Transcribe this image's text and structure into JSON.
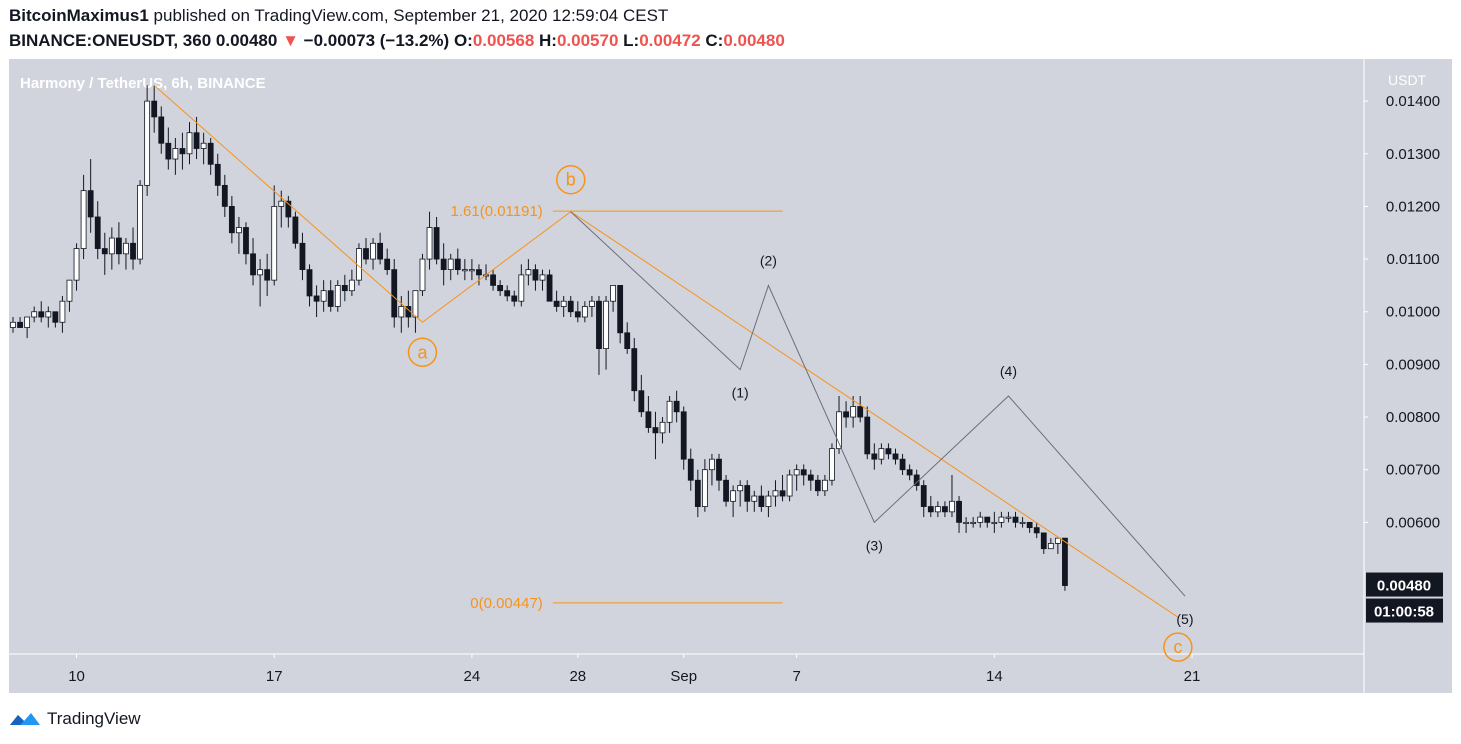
{
  "header": {
    "author": "BitcoinMaximus1",
    "published_text": "published on TradingView.com, September 21, 2020 12:59:04 CEST",
    "symbol": "BINANCE:ONEUSDT, 360",
    "last_price": "0.00480",
    "change_arrow": "▼",
    "change": "−0.00073 (−13.2%)",
    "open_label": "O:",
    "open": "0.00568",
    "high_label": "H:",
    "high": "0.00570",
    "low_label": "L:",
    "low": "0.00472",
    "close_label": "C:",
    "close": "0.00480"
  },
  "footer": {
    "brand": "TradingView"
  },
  "colors": {
    "chart_bg": "#d1d4dc",
    "axis_bg": "#d1d4dc",
    "wave_orange": "#f7931a",
    "wave_gray": "#6b6f7b",
    "candle_up_fill": "#ffffff",
    "candle_down_fill": "#131722",
    "price_badge": "#131722"
  },
  "chart_data": {
    "type": "candlestick",
    "title": "Harmony / TetherUS, 6h, BINANCE",
    "y_axis_unit": "USDT",
    "y_axis_side": "right",
    "ylim": [
      0.0035,
      0.0148
    ],
    "y_ticks": [
      "0.01400",
      "0.01300",
      "0.01200",
      "0.01100",
      "0.01000",
      "0.00900",
      "0.00800",
      "0.00700",
      "0.00600"
    ],
    "x_ticks": [
      "10",
      "17",
      "24",
      "28",
      "Sep",
      "7",
      "14",
      "21"
    ],
    "x_ticks_bar": [
      9,
      37,
      65,
      80,
      95,
      111,
      139,
      167
    ],
    "current_price_label": "0.00480",
    "countdown_label": "01:00:58",
    "candles": [
      {
        "o": 0.0097,
        "h": 0.0099,
        "l": 0.0096,
        "c": 0.0098
      },
      {
        "o": 0.0098,
        "h": 0.0099,
        "l": 0.0097,
        "c": 0.0097
      },
      {
        "o": 0.0097,
        "h": 0.0099,
        "l": 0.0095,
        "c": 0.0099
      },
      {
        "o": 0.0099,
        "h": 0.0101,
        "l": 0.0098,
        "c": 0.01
      },
      {
        "o": 0.01,
        "h": 0.0102,
        "l": 0.0098,
        "c": 0.0099
      },
      {
        "o": 0.0099,
        "h": 0.0101,
        "l": 0.0097,
        "c": 0.01
      },
      {
        "o": 0.01,
        "h": 0.01,
        "l": 0.0097,
        "c": 0.0098
      },
      {
        "o": 0.0098,
        "h": 0.0103,
        "l": 0.0096,
        "c": 0.0102
      },
      {
        "o": 0.0102,
        "h": 0.0106,
        "l": 0.01,
        "c": 0.0106
      },
      {
        "o": 0.0106,
        "h": 0.0113,
        "l": 0.0104,
        "c": 0.0112
      },
      {
        "o": 0.0112,
        "h": 0.0126,
        "l": 0.011,
        "c": 0.0123
      },
      {
        "o": 0.0123,
        "h": 0.0129,
        "l": 0.0115,
        "c": 0.0118
      },
      {
        "o": 0.0118,
        "h": 0.0121,
        "l": 0.011,
        "c": 0.0112
      },
      {
        "o": 0.0112,
        "h": 0.0115,
        "l": 0.0107,
        "c": 0.0111
      },
      {
        "o": 0.0111,
        "h": 0.0116,
        "l": 0.0108,
        "c": 0.0114
      },
      {
        "o": 0.0114,
        "h": 0.0117,
        "l": 0.0109,
        "c": 0.0111
      },
      {
        "o": 0.0111,
        "h": 0.0114,
        "l": 0.0108,
        "c": 0.0113
      },
      {
        "o": 0.0113,
        "h": 0.0116,
        "l": 0.0108,
        "c": 0.011
      },
      {
        "o": 0.011,
        "h": 0.0125,
        "l": 0.0109,
        "c": 0.0124
      },
      {
        "o": 0.0124,
        "h": 0.0143,
        "l": 0.0122,
        "c": 0.014
      },
      {
        "o": 0.014,
        "h": 0.0143,
        "l": 0.0134,
        "c": 0.0137
      },
      {
        "o": 0.0137,
        "h": 0.0139,
        "l": 0.013,
        "c": 0.0132
      },
      {
        "o": 0.0132,
        "h": 0.0135,
        "l": 0.0127,
        "c": 0.0129
      },
      {
        "o": 0.0129,
        "h": 0.0133,
        "l": 0.0126,
        "c": 0.0131
      },
      {
        "o": 0.0131,
        "h": 0.0134,
        "l": 0.0127,
        "c": 0.013
      },
      {
        "o": 0.013,
        "h": 0.0136,
        "l": 0.0128,
        "c": 0.0134
      },
      {
        "o": 0.0134,
        "h": 0.0137,
        "l": 0.0129,
        "c": 0.0131
      },
      {
        "o": 0.0131,
        "h": 0.0134,
        "l": 0.0128,
        "c": 0.0132
      },
      {
        "o": 0.0132,
        "h": 0.0133,
        "l": 0.0126,
        "c": 0.0128
      },
      {
        "o": 0.0128,
        "h": 0.013,
        "l": 0.0122,
        "c": 0.0124
      },
      {
        "o": 0.0124,
        "h": 0.0126,
        "l": 0.0118,
        "c": 0.012
      },
      {
        "o": 0.012,
        "h": 0.0122,
        "l": 0.0113,
        "c": 0.0115
      },
      {
        "o": 0.0115,
        "h": 0.0118,
        "l": 0.0111,
        "c": 0.0116
      },
      {
        "o": 0.0116,
        "h": 0.0117,
        "l": 0.0109,
        "c": 0.0111
      },
      {
        "o": 0.0111,
        "h": 0.0114,
        "l": 0.0105,
        "c": 0.0107
      },
      {
        "o": 0.0107,
        "h": 0.011,
        "l": 0.0101,
        "c": 0.0108
      },
      {
        "o": 0.0108,
        "h": 0.0111,
        "l": 0.0103,
        "c": 0.0106
      },
      {
        "o": 0.0106,
        "h": 0.0124,
        "l": 0.0105,
        "c": 0.012
      },
      {
        "o": 0.012,
        "h": 0.0123,
        "l": 0.0116,
        "c": 0.0121
      },
      {
        "o": 0.0121,
        "h": 0.0122,
        "l": 0.0116,
        "c": 0.0118
      },
      {
        "o": 0.0118,
        "h": 0.0119,
        "l": 0.0112,
        "c": 0.0113
      },
      {
        "o": 0.0113,
        "h": 0.0115,
        "l": 0.0106,
        "c": 0.0108
      },
      {
        "o": 0.0108,
        "h": 0.0109,
        "l": 0.0101,
        "c": 0.0103
      },
      {
        "o": 0.0103,
        "h": 0.0105,
        "l": 0.0099,
        "c": 0.0102
      },
      {
        "o": 0.0102,
        "h": 0.0106,
        "l": 0.01,
        "c": 0.0104
      },
      {
        "o": 0.0104,
        "h": 0.0106,
        "l": 0.01,
        "c": 0.0101
      },
      {
        "o": 0.0101,
        "h": 0.0106,
        "l": 0.01,
        "c": 0.0105
      },
      {
        "o": 0.0105,
        "h": 0.0107,
        "l": 0.0102,
        "c": 0.0104
      },
      {
        "o": 0.0104,
        "h": 0.0108,
        "l": 0.0103,
        "c": 0.0106
      },
      {
        "o": 0.0106,
        "h": 0.0113,
        "l": 0.0105,
        "c": 0.0112
      },
      {
        "o": 0.0112,
        "h": 0.0114,
        "l": 0.0109,
        "c": 0.011
      },
      {
        "o": 0.011,
        "h": 0.0114,
        "l": 0.0108,
        "c": 0.0113
      },
      {
        "o": 0.0113,
        "h": 0.0115,
        "l": 0.0109,
        "c": 0.011
      },
      {
        "o": 0.011,
        "h": 0.0112,
        "l": 0.0107,
        "c": 0.0108
      },
      {
        "o": 0.0108,
        "h": 0.011,
        "l": 0.0097,
        "c": 0.0099
      },
      {
        "o": 0.0099,
        "h": 0.0103,
        "l": 0.0096,
        "c": 0.0101
      },
      {
        "o": 0.0101,
        "h": 0.0104,
        "l": 0.0097,
        "c": 0.0099
      },
      {
        "o": 0.0099,
        "h": 0.0104,
        "l": 0.0096,
        "c": 0.0104
      },
      {
        "o": 0.0104,
        "h": 0.0111,
        "l": 0.0103,
        "c": 0.011
      },
      {
        "o": 0.011,
        "h": 0.0119,
        "l": 0.0108,
        "c": 0.0116
      },
      {
        "o": 0.0116,
        "h": 0.0118,
        "l": 0.0109,
        "c": 0.011
      },
      {
        "o": 0.011,
        "h": 0.0113,
        "l": 0.0105,
        "c": 0.0108
      },
      {
        "o": 0.0108,
        "h": 0.0111,
        "l": 0.0106,
        "c": 0.011
      },
      {
        "o": 0.011,
        "h": 0.0112,
        "l": 0.0107,
        "c": 0.0108
      },
      {
        "o": 0.0108,
        "h": 0.011,
        "l": 0.0106,
        "c": 0.0108
      },
      {
        "o": 0.0108,
        "h": 0.011,
        "l": 0.0106,
        "c": 0.0108
      },
      {
        "o": 0.0108,
        "h": 0.0109,
        "l": 0.0105,
        "c": 0.0107
      },
      {
        "o": 0.0107,
        "h": 0.0109,
        "l": 0.0106,
        "c": 0.0107
      },
      {
        "o": 0.0107,
        "h": 0.0108,
        "l": 0.0104,
        "c": 0.0105
      },
      {
        "o": 0.0105,
        "h": 0.0106,
        "l": 0.0103,
        "c": 0.0104
      },
      {
        "o": 0.0104,
        "h": 0.0105,
        "l": 0.0102,
        "c": 0.0103
      },
      {
        "o": 0.0103,
        "h": 0.0104,
        "l": 0.0101,
        "c": 0.0102
      },
      {
        "o": 0.0102,
        "h": 0.0109,
        "l": 0.0101,
        "c": 0.0107
      },
      {
        "o": 0.0107,
        "h": 0.011,
        "l": 0.0105,
        "c": 0.0108
      },
      {
        "o": 0.0108,
        "h": 0.0109,
        "l": 0.0104,
        "c": 0.0106
      },
      {
        "o": 0.0106,
        "h": 0.0108,
        "l": 0.0104,
        "c": 0.0107
      },
      {
        "o": 0.0107,
        "h": 0.0108,
        "l": 0.0102,
        "c": 0.0102
      },
      {
        "o": 0.0102,
        "h": 0.0104,
        "l": 0.01,
        "c": 0.0101
      },
      {
        "o": 0.0101,
        "h": 0.0103,
        "l": 0.0099,
        "c": 0.0102
      },
      {
        "o": 0.0102,
        "h": 0.0103,
        "l": 0.0099,
        "c": 0.01
      },
      {
        "o": 0.01,
        "h": 0.0102,
        "l": 0.0098,
        "c": 0.0099
      },
      {
        "o": 0.0099,
        "h": 0.0102,
        "l": 0.0098,
        "c": 0.0101
      },
      {
        "o": 0.0101,
        "h": 0.0103,
        "l": 0.0099,
        "c": 0.0102
      },
      {
        "o": 0.0102,
        "h": 0.0103,
        "l": 0.0088,
        "c": 0.0093
      },
      {
        "o": 0.0093,
        "h": 0.0103,
        "l": 0.0089,
        "c": 0.0102
      },
      {
        "o": 0.0102,
        "h": 0.0105,
        "l": 0.01,
        "c": 0.0105
      },
      {
        "o": 0.0105,
        "h": 0.0105,
        "l": 0.0094,
        "c": 0.0096
      },
      {
        "o": 0.0096,
        "h": 0.0098,
        "l": 0.0092,
        "c": 0.0093
      },
      {
        "o": 0.0093,
        "h": 0.0095,
        "l": 0.0083,
        "c": 0.0085
      },
      {
        "o": 0.0085,
        "h": 0.0088,
        "l": 0.008,
        "c": 0.0081
      },
      {
        "o": 0.0081,
        "h": 0.0084,
        "l": 0.0077,
        "c": 0.0078
      },
      {
        "o": 0.0078,
        "h": 0.0081,
        "l": 0.0072,
        "c": 0.0077
      },
      {
        "o": 0.0077,
        "h": 0.008,
        "l": 0.0075,
        "c": 0.0079
      },
      {
        "o": 0.0079,
        "h": 0.0084,
        "l": 0.0077,
        "c": 0.0083
      },
      {
        "o": 0.0083,
        "h": 0.0085,
        "l": 0.0079,
        "c": 0.0081
      },
      {
        "o": 0.0081,
        "h": 0.0082,
        "l": 0.007,
        "c": 0.0072
      },
      {
        "o": 0.0072,
        "h": 0.0074,
        "l": 0.0066,
        "c": 0.0068
      },
      {
        "o": 0.0068,
        "h": 0.007,
        "l": 0.0061,
        "c": 0.0063
      },
      {
        "o": 0.0063,
        "h": 0.0072,
        "l": 0.0062,
        "c": 0.007
      },
      {
        "o": 0.007,
        "h": 0.0073,
        "l": 0.0067,
        "c": 0.0072
      },
      {
        "o": 0.0072,
        "h": 0.0073,
        "l": 0.0066,
        "c": 0.0068
      },
      {
        "o": 0.0068,
        "h": 0.0069,
        "l": 0.0063,
        "c": 0.0064
      },
      {
        "o": 0.0064,
        "h": 0.0067,
        "l": 0.0061,
        "c": 0.0066
      },
      {
        "o": 0.0066,
        "h": 0.0068,
        "l": 0.0063,
        "c": 0.0067
      },
      {
        "o": 0.0067,
        "h": 0.0068,
        "l": 0.0062,
        "c": 0.0064
      },
      {
        "o": 0.0064,
        "h": 0.0066,
        "l": 0.0062,
        "c": 0.0065
      },
      {
        "o": 0.0065,
        "h": 0.0067,
        "l": 0.0062,
        "c": 0.0063
      },
      {
        "o": 0.0063,
        "h": 0.0066,
        "l": 0.0061,
        "c": 0.0065
      },
      {
        "o": 0.0065,
        "h": 0.0068,
        "l": 0.0063,
        "c": 0.0066
      },
      {
        "o": 0.0066,
        "h": 0.0069,
        "l": 0.0064,
        "c": 0.0065
      },
      {
        "o": 0.0065,
        "h": 0.007,
        "l": 0.0064,
        "c": 0.0069
      },
      {
        "o": 0.0069,
        "h": 0.0071,
        "l": 0.0066,
        "c": 0.007
      },
      {
        "o": 0.007,
        "h": 0.0071,
        "l": 0.0067,
        "c": 0.0069
      },
      {
        "o": 0.0069,
        "h": 0.007,
        "l": 0.0066,
        "c": 0.0068
      },
      {
        "o": 0.0068,
        "h": 0.0069,
        "l": 0.0065,
        "c": 0.0066
      },
      {
        "o": 0.0066,
        "h": 0.0069,
        "l": 0.0065,
        "c": 0.0068
      },
      {
        "o": 0.0068,
        "h": 0.0075,
        "l": 0.0067,
        "c": 0.0074
      },
      {
        "o": 0.0074,
        "h": 0.0084,
        "l": 0.0073,
        "c": 0.0081
      },
      {
        "o": 0.0081,
        "h": 0.0083,
        "l": 0.0078,
        "c": 0.008
      },
      {
        "o": 0.008,
        "h": 0.0084,
        "l": 0.0078,
        "c": 0.0082
      },
      {
        "o": 0.0082,
        "h": 0.0084,
        "l": 0.0079,
        "c": 0.008
      },
      {
        "o": 0.008,
        "h": 0.0082,
        "l": 0.0072,
        "c": 0.0073
      },
      {
        "o": 0.0073,
        "h": 0.0075,
        "l": 0.007,
        "c": 0.0072
      },
      {
        "o": 0.0072,
        "h": 0.0075,
        "l": 0.0071,
        "c": 0.0074
      },
      {
        "o": 0.0074,
        "h": 0.0075,
        "l": 0.0072,
        "c": 0.0073
      },
      {
        "o": 0.0073,
        "h": 0.0074,
        "l": 0.0071,
        "c": 0.0072
      },
      {
        "o": 0.0072,
        "h": 0.0073,
        "l": 0.0069,
        "c": 0.007
      },
      {
        "o": 0.007,
        "h": 0.0071,
        "l": 0.0068,
        "c": 0.0069
      },
      {
        "o": 0.0069,
        "h": 0.007,
        "l": 0.0066,
        "c": 0.0067
      },
      {
        "o": 0.0067,
        "h": 0.0068,
        "l": 0.0061,
        "c": 0.0063
      },
      {
        "o": 0.0063,
        "h": 0.0065,
        "l": 0.0061,
        "c": 0.0062
      },
      {
        "o": 0.0062,
        "h": 0.0064,
        "l": 0.0061,
        "c": 0.0063
      },
      {
        "o": 0.0063,
        "h": 0.0064,
        "l": 0.0061,
        "c": 0.0062
      },
      {
        "o": 0.0062,
        "h": 0.0069,
        "l": 0.0061,
        "c": 0.0064
      },
      {
        "o": 0.0064,
        "h": 0.0065,
        "l": 0.0058,
        "c": 0.006
      },
      {
        "o": 0.006,
        "h": 0.0061,
        "l": 0.0058,
        "c": 0.006
      },
      {
        "o": 0.006,
        "h": 0.0061,
        "l": 0.0059,
        "c": 0.006
      },
      {
        "o": 0.006,
        "h": 0.0062,
        "l": 0.0059,
        "c": 0.0061
      },
      {
        "o": 0.0061,
        "h": 0.0061,
        "l": 0.0059,
        "c": 0.006
      },
      {
        "o": 0.006,
        "h": 0.0062,
        "l": 0.0058,
        "c": 0.006
      },
      {
        "o": 0.006,
        "h": 0.0062,
        "l": 0.0059,
        "c": 0.0061
      },
      {
        "o": 0.0061,
        "h": 0.0062,
        "l": 0.006,
        "c": 0.0061
      },
      {
        "o": 0.0061,
        "h": 0.0062,
        "l": 0.0059,
        "c": 0.006
      },
      {
        "o": 0.006,
        "h": 0.0061,
        "l": 0.0059,
        "c": 0.006
      },
      {
        "o": 0.006,
        "h": 0.006,
        "l": 0.0058,
        "c": 0.0059
      },
      {
        "o": 0.0059,
        "h": 0.006,
        "l": 0.0057,
        "c": 0.0058
      },
      {
        "o": 0.0058,
        "h": 0.0058,
        "l": 0.0054,
        "c": 0.0055
      },
      {
        "o": 0.0055,
        "h": 0.0057,
        "l": 0.0055,
        "c": 0.0056
      },
      {
        "o": 0.0056,
        "h": 0.0057,
        "l": 0.0054,
        "c": 0.0057
      },
      {
        "o": 0.0057,
        "h": 0.0057,
        "l": 0.0047,
        "c": 0.0048
      }
    ],
    "fib_levels": [
      {
        "label": "1.61(0.01191)",
        "price": 0.01191
      },
      {
        "label": "0(0.00447)",
        "price": 0.00447
      }
    ],
    "fib_bar_range": [
      80,
      109
    ],
    "wave_orange": [
      {
        "label": "",
        "bar": 20,
        "price": 0.0143
      },
      {
        "label": "a",
        "bar": 58,
        "price": 0.0098
      },
      {
        "label": "b",
        "bar": 79,
        "price": 0.0119
      },
      {
        "label": "c",
        "bar": 165,
        "price": 0.0042
      }
    ],
    "wave_gray": [
      {
        "label": "",
        "bar": 79,
        "price": 0.0119
      },
      {
        "label": "(1)",
        "bar": 103,
        "price": 0.0089
      },
      {
        "label": "(2)",
        "bar": 107,
        "price": 0.0105
      },
      {
        "label": "(3)",
        "bar": 122,
        "price": 0.006
      },
      {
        "label": "(4)",
        "bar": 141,
        "price": 0.0084
      },
      {
        "label": "(5)",
        "bar": 166,
        "price": 0.0046
      }
    ]
  }
}
